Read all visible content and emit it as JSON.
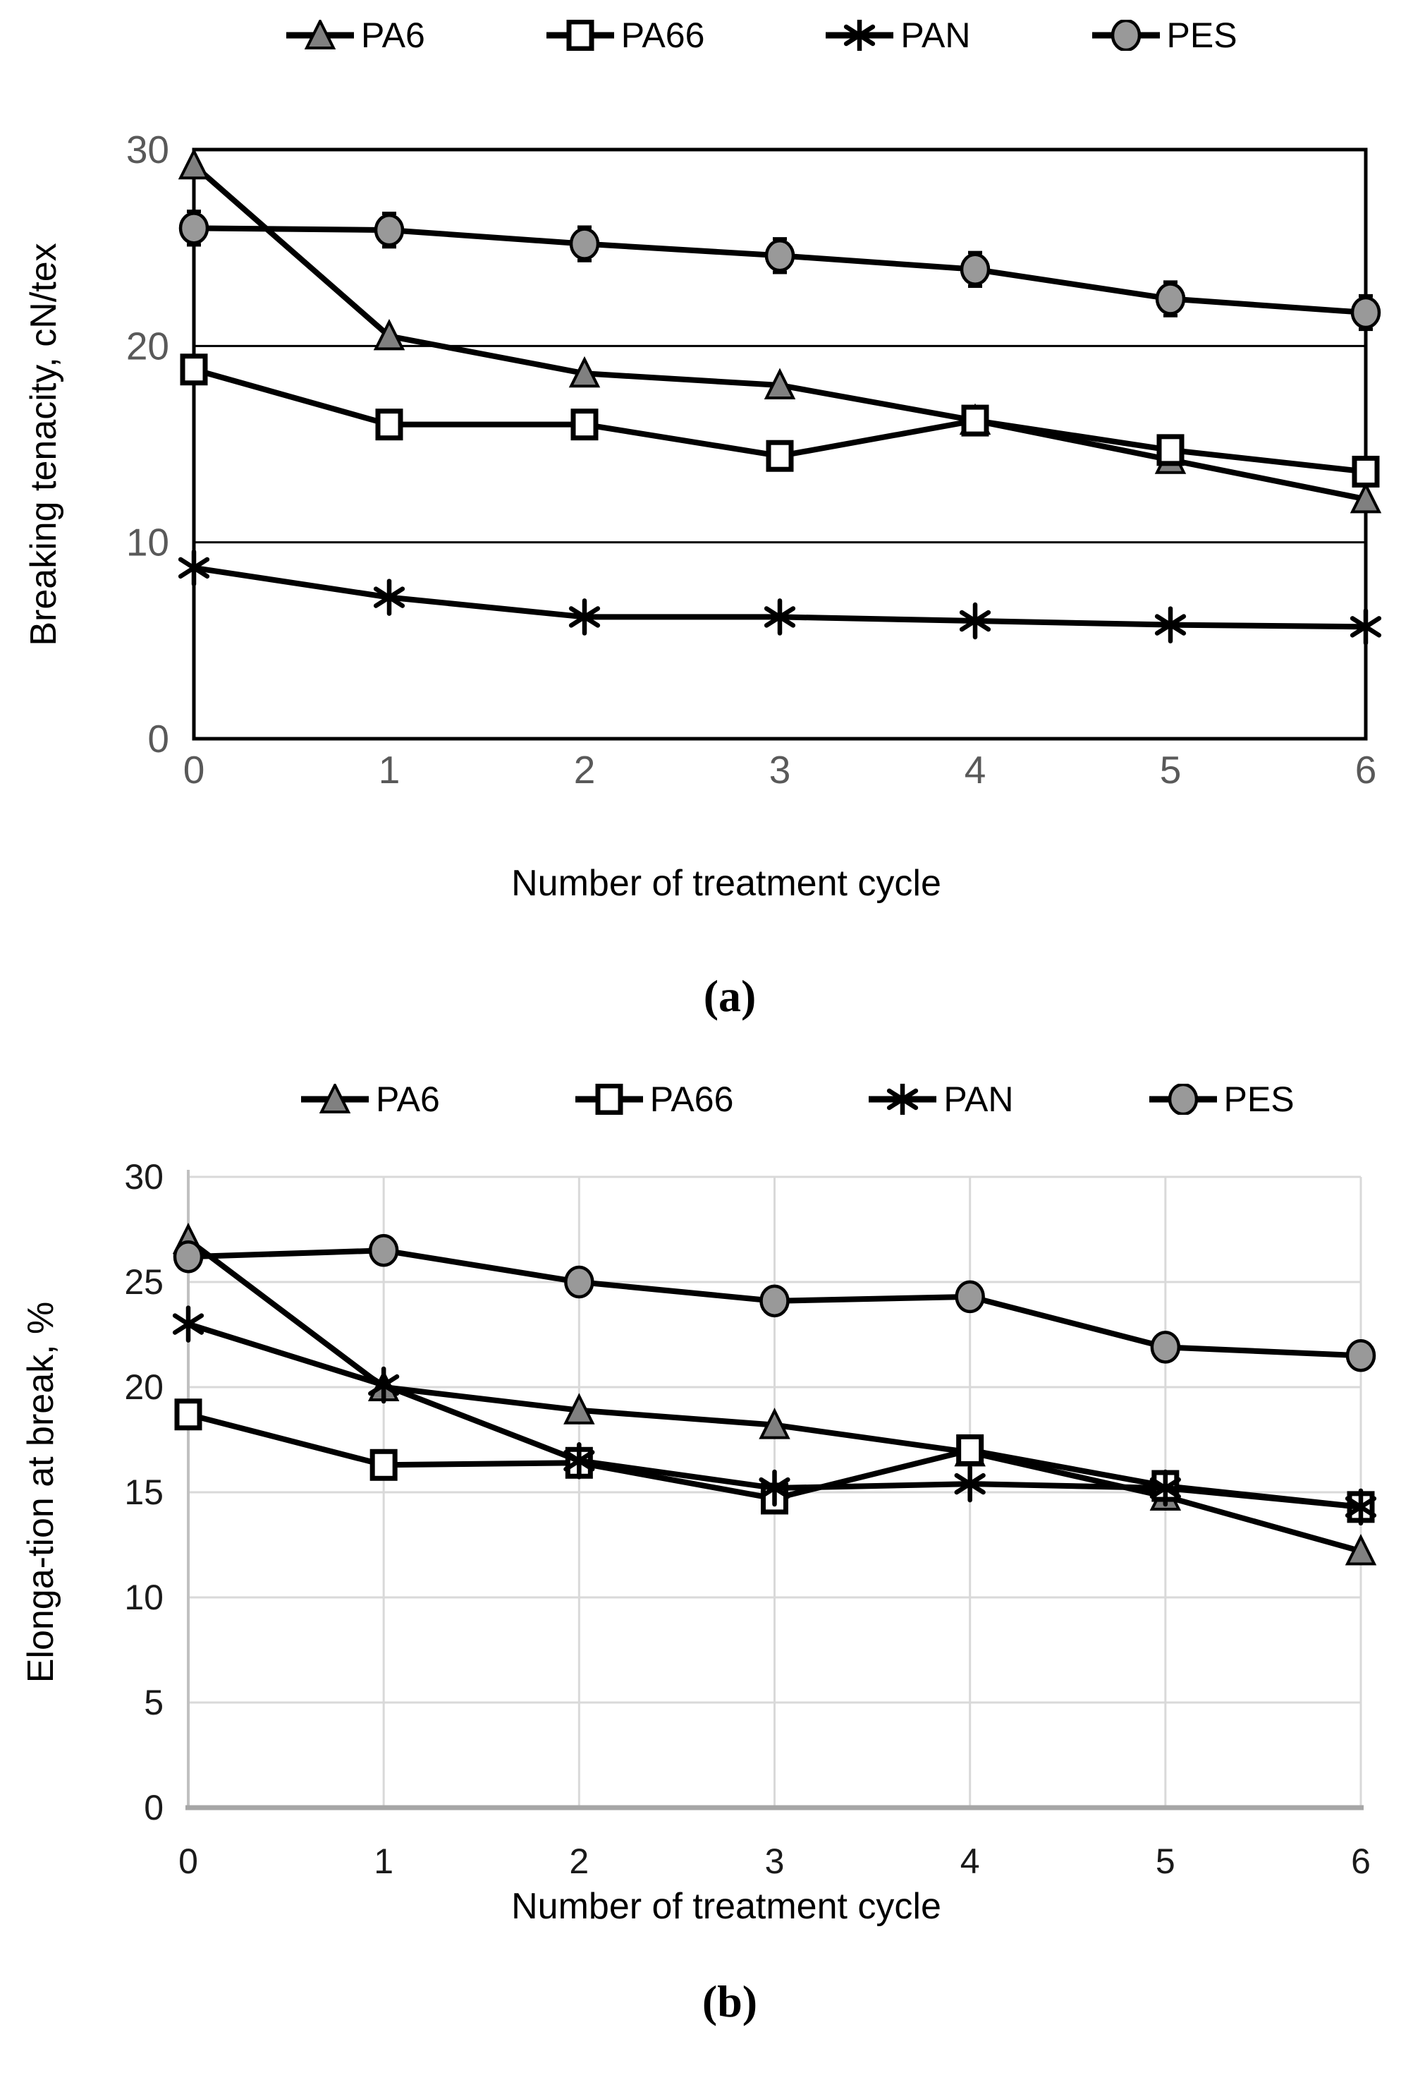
{
  "colors": {
    "line": "#000000",
    "triangle_fill": "#808080",
    "circle_fill": "#999999",
    "square_fill": "#ffffff",
    "marker_stroke": "#000000",
    "grid_black": "#000000",
    "grid_light": "#d9d9d9",
    "axis_gray_light": "#c0c0c0",
    "axis_gray_bottom": "#a6a6a6",
    "tick_gray": "#595959",
    "tick_dark": "#1a1a1a"
  },
  "figure_a": {
    "caption": "(a)",
    "chart_data": {
      "type": "line",
      "title": "",
      "xlabel": "Number of treatment cycle",
      "ylabel": "Breaking tenacity, cN/tex",
      "x": [
        0,
        1,
        2,
        3,
        4,
        5,
        6
      ],
      "x_tick_labels": [
        "0",
        "1",
        "2",
        "3",
        "4",
        "5",
        "6"
      ],
      "ylim": [
        0,
        30
      ],
      "yticks": [
        0,
        10,
        20,
        30
      ],
      "grid": "horizontal black lines at 10 and 20, full black plot border",
      "legend_position": "top",
      "series": [
        {
          "name": "PA6",
          "marker": "triangle",
          "marker_fill": "#808080",
          "values": [
            29.2,
            20.5,
            18.6,
            18.0,
            16.2,
            14.2,
            12.2
          ]
        },
        {
          "name": "PA66",
          "marker": "square",
          "marker_fill": "#ffffff",
          "values": [
            18.8,
            16.0,
            16.0,
            14.4,
            16.2,
            14.7,
            13.6
          ]
        },
        {
          "name": "PAN",
          "marker": "asterisk",
          "marker_fill": "#000000",
          "values": [
            8.7,
            7.2,
            6.2,
            6.2,
            6.0,
            5.8,
            5.7
          ]
        },
        {
          "name": "PES",
          "marker": "circle",
          "marker_fill": "#999999",
          "values": [
            26.0,
            25.9,
            25.2,
            24.6,
            23.9,
            22.4,
            21.7
          ],
          "error_bars": 0.85
        }
      ]
    }
  },
  "figure_b": {
    "caption": "(b)",
    "chart_data": {
      "type": "line",
      "title": "",
      "xlabel": "Number of treatment cycle",
      "ylabel": "Elonga-tion at break, %",
      "x": [
        0,
        1,
        2,
        3,
        4,
        5,
        6
      ],
      "x_tick_labels": [
        "0",
        "1",
        "2",
        "3",
        "4",
        "5",
        "6"
      ],
      "ylim": [
        0,
        30
      ],
      "yticks": [
        0,
        5,
        10,
        15,
        20,
        25,
        30
      ],
      "grid": "light gray horizontal and vertical gridlines",
      "legend_position": "top",
      "series": [
        {
          "name": "PA6",
          "marker": "triangle",
          "marker_fill": "#808080",
          "values": [
            27.0,
            20.0,
            18.9,
            18.2,
            16.9,
            14.8,
            12.2
          ]
        },
        {
          "name": "PA66",
          "marker": "square",
          "marker_fill": "#ffffff",
          "values": [
            18.7,
            16.3,
            16.4,
            14.7,
            17.0,
            15.3,
            14.3
          ]
        },
        {
          "name": "PAN",
          "marker": "asterisk",
          "marker_fill": "#000000",
          "values": [
            23.0,
            20.1,
            16.5,
            15.2,
            15.4,
            15.2,
            14.3
          ]
        },
        {
          "name": "PES",
          "marker": "circle",
          "marker_fill": "#999999",
          "values": [
            26.2,
            26.5,
            25.0,
            24.1,
            24.3,
            21.9,
            21.5
          ]
        }
      ]
    }
  }
}
